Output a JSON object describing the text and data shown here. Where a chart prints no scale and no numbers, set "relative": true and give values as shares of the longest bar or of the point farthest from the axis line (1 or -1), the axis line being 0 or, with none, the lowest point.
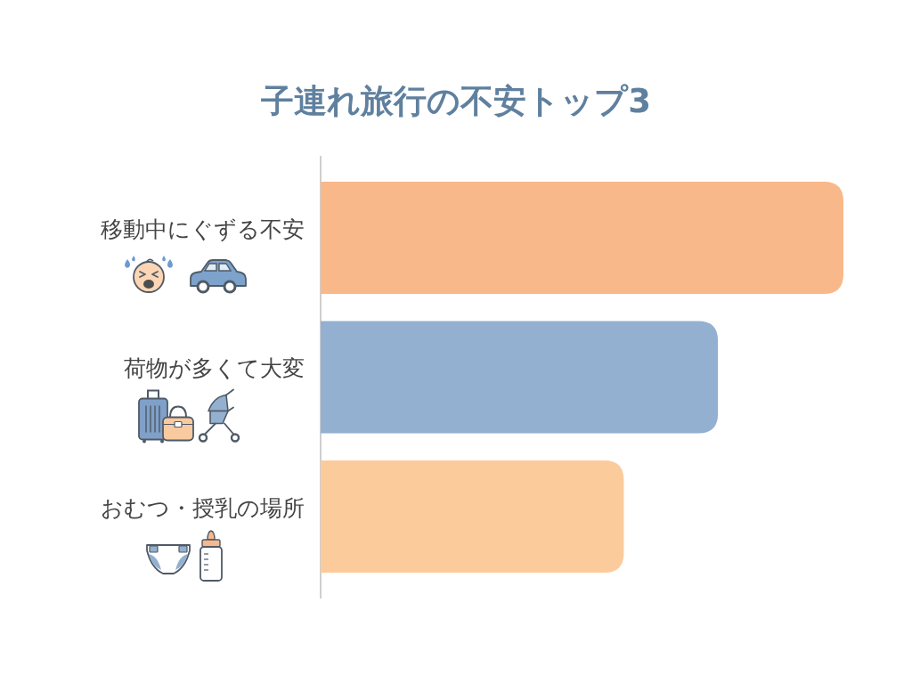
{
  "chart_data": {
    "type": "bar",
    "orientation": "horizontal",
    "relative": true,
    "title": "子連れ旅行の不安トップ3",
    "categories": [
      "移動中にぐずる不安",
      "荷物が多くて大変",
      "おむつ・授乳の場所"
    ],
    "values": [
      1,
      0.76,
      0.58
    ],
    "colors": [
      "#f9b88a",
      "#93b0d0",
      "#fccb9c"
    ]
  }
}
